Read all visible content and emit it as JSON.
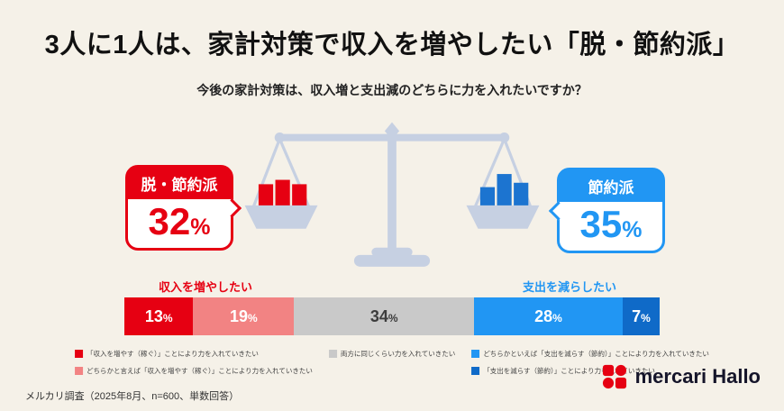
{
  "palette": {
    "bg": "#f5f1e8",
    "ink": "#111111",
    "red": "#e60012",
    "pink": "#f28383",
    "gray": "#c9c9c9",
    "blue": "#2196f3",
    "blue-dark": "#0f6ac8",
    "scale": "#c6d0e2",
    "pan-blue": "#1c74d0"
  },
  "header": {
    "title": "3人に1人は、家計対策で収入を増やしたい「脱・節約派」",
    "subtitle": "今後の家計対策は、収入増と支出減のどちらに力を入れたいですか？"
  },
  "callouts": {
    "left": {
      "label": "脱・節約派",
      "value": 32,
      "unit": "%"
    },
    "right": {
      "label": "節約派",
      "value": 35,
      "unit": "%"
    }
  },
  "chart_data": {
    "type": "bar",
    "orientation": "horizontal",
    "stacked": true,
    "unit": "%",
    "question": "今後の家計対策は、収入増と支出減のどちらに力を入れたいですか？",
    "groups": {
      "increase_income": {
        "label": "収入を増やしたい",
        "total": 32
      },
      "decrease_spending": {
        "label": "支出を減らしたい",
        "total": 35
      }
    },
    "segments": [
      {
        "label": "「収入を増やす（稼ぐ）」ことにより力を入れていきたい",
        "value": 13,
        "color": "#e60012",
        "label_color": "#ffffff"
      },
      {
        "label": "どちらかと言えば「収入を増やす（稼ぐ）」ことにより力を入れていきたい",
        "value": 19,
        "color": "#f28383",
        "label_color": "#ffffff"
      },
      {
        "label": "両方に同じくらい力を入れていきたい",
        "value": 34,
        "color": "#c9c9c9",
        "label_color": "#3c3c3c"
      },
      {
        "label": "どちらかといえば「支出を減らす（節約）」ことにより力を入れていきたい",
        "value": 28,
        "color": "#2196f3",
        "label_color": "#ffffff"
      },
      {
        "label": "「支出を減らす（節約）」ことにより力を入れていきたい",
        "value": 7,
        "color": "#0f6ac8",
        "label_color": "#ffffff"
      }
    ]
  },
  "legend": [
    {
      "color": "#e60012",
      "label": "「収入を増やす（稼ぐ）」ことにより力を入れていきたい"
    },
    {
      "color": "#f28383",
      "label": "どちらかと言えば「収入を増やす（稼ぐ）」ことにより力を入れていきたい"
    },
    {
      "color": "#c9c9c9",
      "label": "両方に同じくらい力を入れていきたい"
    },
    {
      "color": "#2196f3",
      "label": "どちらかといえば「支出を減らす（節約）」ことにより力を入れていきたい"
    },
    {
      "color": "#0f6ac8",
      "label": "「支出を減らす（節約）」ことにより力を入れていきたい"
    }
  ],
  "footer": {
    "source": "メルカリ調査（2025年8月、n=600、単数回答）",
    "logo_text": "mercari Hallo"
  }
}
